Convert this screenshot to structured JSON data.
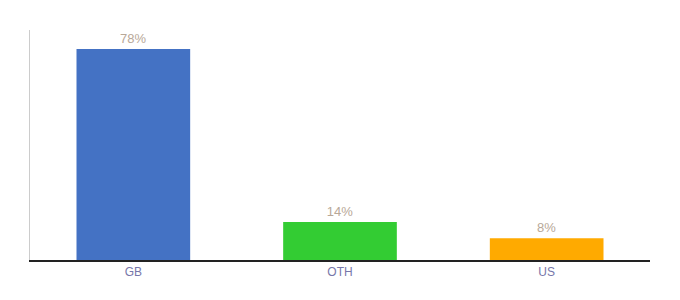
{
  "chart_data": {
    "type": "bar",
    "categories": [
      "GB",
      "OTH",
      "US"
    ],
    "values": [
      78,
      14,
      8
    ],
    "value_labels": [
      "78%",
      "14%",
      "8%"
    ],
    "colors": [
      "#4472c4",
      "#33cc33",
      "#ffaa00"
    ],
    "ylim": [
      0,
      85
    ],
    "data_labels": true,
    "tick_labels": "x",
    "grid": false
  }
}
